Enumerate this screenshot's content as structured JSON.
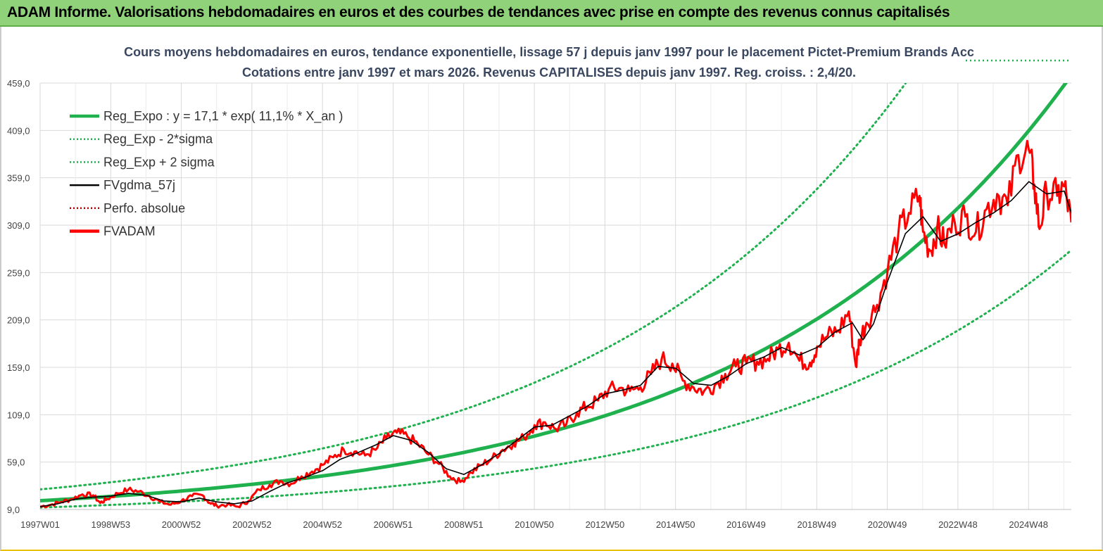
{
  "banner": {
    "title": "ADAM Informe. Valorisations hebdomadaires en euros et des courbes de tendances avec prise en compte des revenus connus capitalisés"
  },
  "colors": {
    "regression": "#1fb14e",
    "fvgdma": "#000000",
    "fvadam": "#ff0000",
    "perfo": "#c00000",
    "grid": "#d9d9d9",
    "title": "#3a4760",
    "banner": "#8fd27a"
  },
  "chart_data": {
    "type": "line",
    "title_lines": [
      "Cours moyens hebdomadaires en euros, tendance exponentielle, lissage 57 j depuis janv 1997  pour le placement Pictet-Premium Brands Acc",
      "Cotations entre janv 1997 et mars 2026. Revenus  CAPITALISES  depuis janv 1997. Reg. croiss. : 2,4/20."
    ],
    "x_ticks": [
      "1997W01",
      "1998W53",
      "2000W52",
      "2002W52",
      "2004W52",
      "2006W51",
      "2008W51",
      "2010W50",
      "2012W50",
      "2014W50",
      "2016W49",
      "2018W49",
      "2020W49",
      "2022W48",
      "2024W48"
    ],
    "x_range": [
      1997.0,
      2026.2
    ],
    "y_ticks": [
      "9,0",
      "59,0",
      "109,0",
      "159,0",
      "209,0",
      "259,0",
      "309,0",
      "359,0",
      "409,0",
      "459,0"
    ],
    "y_range": [
      9,
      459
    ],
    "regression": {
      "a": 17.1,
      "b": 0.111,
      "sigma_factor_low": 0.605,
      "sigma_factor_high": 1.653
    },
    "legend": [
      {
        "label": "Reg_Expo : y = 17,1  *  exp( 11,1% *  X_an )",
        "style": "solid-thick",
        "color": "#1fb14e"
      },
      {
        "label": "Reg_Exp - 2*sigma",
        "style": "dotted",
        "color": "#1fb14e"
      },
      {
        "label": "Reg_Exp + 2 sigma",
        "style": "dotted",
        "color": "#1fb14e"
      },
      {
        "label": "FVgdma_57j",
        "style": "solid",
        "color": "#000000"
      },
      {
        "label": "Perfo. absolue",
        "style": "dotted",
        "color": "#c00000"
      },
      {
        "label": "FVADAM",
        "style": "solid-thick",
        "color": "#ff0000"
      }
    ],
    "series": [
      {
        "name": "FVADAM",
        "x": [
          1997.0,
          1997.3,
          1997.6,
          1997.9,
          1998.2,
          1998.5,
          1998.7,
          1998.9,
          1999.2,
          1999.5,
          1999.8,
          2000.1,
          2000.4,
          2000.7,
          2001.0,
          2001.3,
          2001.6,
          2001.8,
          2002.0,
          2002.3,
          2002.6,
          2002.9,
          2003.2,
          2003.5,
          2003.8,
          2004.1,
          2004.4,
          2004.7,
          2005.0,
          2005.3,
          2005.6,
          2005.9,
          2006.2,
          2006.5,
          2006.8,
          2007.1,
          2007.4,
          2007.7,
          2008.0,
          2008.3,
          2008.6,
          2008.9,
          2009.2,
          2009.5,
          2009.8,
          2010.1,
          2010.4,
          2010.7,
          2011.0,
          2011.3,
          2011.6,
          2011.9,
          2012.2,
          2012.5,
          2012.8,
          2013.1,
          2013.4,
          2013.7,
          2014.0,
          2014.3,
          2014.6,
          2014.9,
          2015.2,
          2015.5,
          2015.8,
          2016.1,
          2016.4,
          2016.7,
          2017.0,
          2017.3,
          2017.6,
          2017.9,
          2018.2,
          2018.5,
          2018.8,
          2019.0,
          2019.3,
          2019.6,
          2019.9,
          2020.1,
          2020.2,
          2020.4,
          2020.7,
          2021.0,
          2021.3,
          2021.6,
          2021.9,
          2022.0,
          2022.2,
          2022.4,
          2022.6,
          2022.9,
          2023.2,
          2023.5,
          2023.8,
          2024.1,
          2024.4,
          2024.7,
          2025.0,
          2025.15,
          2025.3,
          2025.5,
          2025.8,
          2026.0,
          2026.2
        ],
        "values": [
          12,
          14,
          17,
          20,
          25,
          24,
          16,
          20,
          26,
          30,
          28,
          23,
          17,
          14,
          18,
          23,
          24,
          16,
          13,
          14,
          12,
          18,
          30,
          35,
          39,
          36,
          44,
          49,
          56,
          64,
          72,
          70,
          66,
          72,
          84,
          90,
          86,
          78,
          67,
          57,
          44,
          38,
          48,
          56,
          63,
          72,
          79,
          85,
          98,
          101,
          94,
          99,
          111,
          118,
          124,
          136,
          137,
          134,
          138,
          152,
          168,
          163,
          145,
          138,
          134,
          140,
          152,
          160,
          163,
          165,
          168,
          178,
          185,
          166,
          164,
          181,
          192,
          198,
          218,
          160,
          188,
          206,
          225,
          262,
          300,
          322,
          340,
          302,
          282,
          305,
          290,
          312,
          318,
          302,
          326,
          342,
          330,
          383,
          388,
          352,
          305,
          345,
          340,
          350,
          312
        ]
      },
      {
        "name": "FVgdma_57j",
        "x": [
          1997.0,
          1997.5,
          1998.0,
          1998.5,
          1999.0,
          1999.5,
          2000.0,
          2000.5,
          2001.0,
          2001.5,
          2002.0,
          2002.5,
          2003.0,
          2003.5,
          2004.0,
          2004.5,
          2005.0,
          2005.5,
          2006.0,
          2006.5,
          2007.0,
          2007.5,
          2008.0,
          2008.5,
          2009.0,
          2009.5,
          2010.0,
          2010.5,
          2011.0,
          2011.5,
          2012.0,
          2012.5,
          2013.0,
          2013.5,
          2014.0,
          2014.5,
          2015.0,
          2015.5,
          2016.0,
          2016.5,
          2017.0,
          2017.5,
          2018.0,
          2018.5,
          2019.0,
          2019.5,
          2020.0,
          2020.3,
          2020.6,
          2021.0,
          2021.5,
          2022.0,
          2022.5,
          2023.0,
          2023.5,
          2024.0,
          2024.5,
          2025.0,
          2025.5,
          2026.0,
          2026.2
        ],
        "values": [
          12,
          15,
          20,
          22,
          23,
          26,
          24,
          18,
          17,
          21,
          17,
          15,
          18,
          28,
          37,
          43,
          50,
          62,
          69,
          77,
          87,
          82,
          69,
          52,
          46,
          56,
          68,
          82,
          96,
          98,
          108,
          118,
          131,
          135,
          140,
          160,
          158,
          142,
          140,
          150,
          163,
          170,
          180,
          172,
          180,
          196,
          206,
          188,
          205,
          250,
          300,
          318,
          292,
          300,
          312,
          322,
          335,
          355,
          342,
          345,
          322
        ]
      }
    ]
  }
}
